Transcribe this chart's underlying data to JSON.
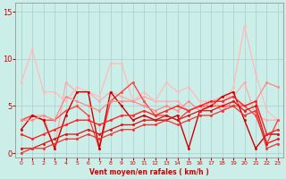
{
  "xlabel": "Vent moyen/en rafales ( km/h )",
  "xlim": [
    -0.5,
    23.5
  ],
  "ylim": [
    -0.5,
    16
  ],
  "yticks": [
    0,
    5,
    10,
    15
  ],
  "xticks": [
    0,
    1,
    2,
    3,
    4,
    5,
    6,
    7,
    8,
    9,
    10,
    11,
    12,
    13,
    14,
    15,
    16,
    17,
    18,
    19,
    20,
    21,
    22,
    23
  ],
  "background_color": "#cceee8",
  "grid_color": "#aacccc",
  "series": [
    {
      "y": [
        3.5,
        4.0,
        4.0,
        0.5,
        7.5,
        6.5,
        6.5,
        5.5,
        6.5,
        6.0,
        5.5,
        6.0,
        5.5,
        5.5,
        5.5,
        4.5,
        5.0,
        5.5,
        6.0,
        6.0,
        7.5,
        4.0,
        3.5,
        3.5
      ],
      "color": "#ffaaaa",
      "lw": 0.9,
      "marker": "o",
      "ms": 1.8
    },
    {
      "y": [
        7.5,
        11.0,
        6.5,
        6.5,
        5.5,
        7.0,
        6.5,
        6.0,
        9.5,
        9.5,
        5.5,
        6.5,
        5.5,
        7.5,
        6.5,
        7.0,
        5.5,
        5.5,
        5.0,
        7.0,
        13.5,
        8.5,
        4.5,
        3.5
      ],
      "color": "#ffbbbb",
      "lw": 0.9,
      "marker": "o",
      "ms": 1.8
    },
    {
      "y": [
        3.5,
        4.0,
        3.5,
        3.5,
        4.5,
        5.0,
        4.0,
        0.5,
        5.5,
        6.5,
        7.5,
        5.5,
        4.0,
        4.0,
        3.5,
        4.5,
        5.0,
        5.0,
        5.0,
        5.0,
        5.0,
        4.0,
        1.0,
        3.5
      ],
      "color": "#ff4444",
      "lw": 1.0,
      "marker": "o",
      "ms": 1.8
    },
    {
      "y": [
        2.5,
        4.0,
        3.5,
        0.5,
        4.0,
        6.5,
        6.5,
        0.5,
        6.5,
        5.0,
        3.5,
        4.0,
        3.5,
        3.5,
        4.0,
        0.5,
        4.5,
        5.0,
        6.0,
        6.5,
        3.5,
        0.5,
        2.0,
        2.0
      ],
      "color": "#cc0000",
      "lw": 1.0,
      "marker": "o",
      "ms": 1.8
    },
    {
      "y": [
        3.5,
        3.5,
        4.0,
        3.5,
        6.0,
        5.5,
        5.0,
        4.5,
        5.5,
        5.5,
        5.5,
        5.0,
        4.5,
        5.0,
        4.5,
        5.5,
        4.5,
        5.5,
        4.5,
        5.5,
        5.0,
        5.5,
        7.5,
        7.0
      ],
      "color": "#ff8888",
      "lw": 0.9,
      "marker": "o",
      "ms": 1.8
    },
    {
      "y": [
        2.0,
        1.5,
        2.0,
        2.5,
        3.0,
        3.5,
        3.5,
        3.0,
        3.5,
        4.0,
        4.0,
        4.5,
        4.0,
        4.5,
        5.0,
        4.5,
        5.0,
        5.5,
        5.5,
        6.0,
        5.0,
        5.5,
        2.0,
        2.5
      ],
      "color": "#ff2222",
      "lw": 1.0,
      "marker": "o",
      "ms": 1.8
    },
    {
      "y": [
        0.5,
        0.5,
        1.0,
        1.5,
        2.0,
        2.0,
        2.5,
        2.0,
        2.5,
        3.0,
        3.0,
        3.5,
        3.5,
        4.0,
        3.5,
        4.0,
        4.5,
        4.5,
        5.0,
        5.5,
        4.5,
        5.0,
        1.0,
        1.5
      ],
      "color": "#dd1111",
      "lw": 0.9,
      "marker": "o",
      "ms": 1.8
    },
    {
      "y": [
        0.0,
        0.5,
        0.5,
        1.0,
        1.5,
        1.5,
        2.0,
        1.5,
        2.0,
        2.5,
        2.5,
        3.0,
        3.0,
        3.5,
        3.0,
        3.5,
        4.0,
        4.0,
        4.5,
        5.0,
        4.0,
        4.5,
        0.5,
        1.0
      ],
      "color": "#ee3333",
      "lw": 0.9,
      "marker": "o",
      "ms": 1.8
    }
  ]
}
